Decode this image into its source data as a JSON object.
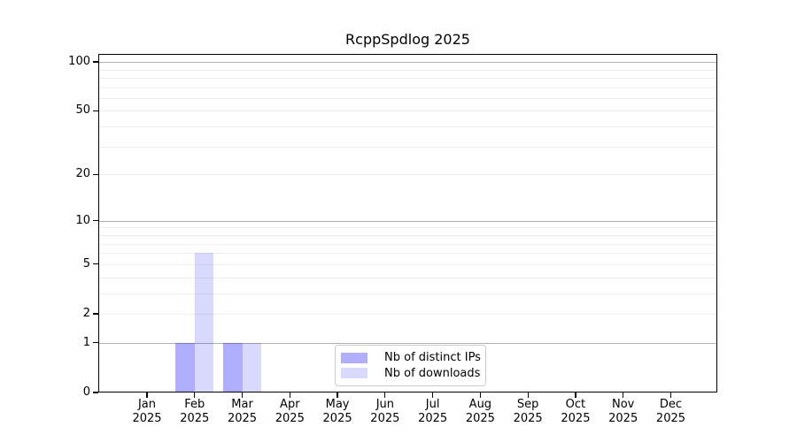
{
  "figure": {
    "background": "#ffffff",
    "axis_color": "#000000"
  },
  "chart_data": {
    "type": "bar",
    "title": "RcppSpdlog 2025",
    "categories": [
      "Jan",
      "Feb",
      "Mar",
      "Apr",
      "May",
      "Jun",
      "Jul",
      "Aug",
      "Sep",
      "Oct",
      "Nov",
      "Dec"
    ],
    "x_tick_year": "2025",
    "series": [
      {
        "name": "Nb of distinct IPs",
        "color": "rgba(10,10,245,0.33)",
        "values": [
          0,
          1,
          1,
          0,
          0,
          0,
          0,
          0,
          0,
          0,
          0,
          0
        ]
      },
      {
        "name": "Nb of downloads",
        "color": "rgba(10,10,245,0.155)",
        "values": [
          0,
          6,
          1,
          0,
          0,
          0,
          0,
          0,
          0,
          0,
          0,
          0
        ]
      }
    ],
    "yscale": "log1p",
    "ylim": [
      0,
      112
    ],
    "y_ticks": [
      0,
      1,
      2,
      5,
      10,
      20,
      50,
      100
    ],
    "y_tick_labels": [
      "0",
      "1",
      "2",
      "5",
      "10",
      "20",
      "50",
      "100"
    ],
    "grid": {
      "major_values": [
        1,
        10,
        100
      ],
      "minor_values": [
        2,
        3,
        4,
        5,
        6,
        7,
        8,
        9,
        20,
        30,
        40,
        50,
        60,
        70,
        80,
        90
      ],
      "major_color": "#b0b0b0",
      "minor_color": "#ededed"
    },
    "legend": {
      "position": "lower center",
      "entries": [
        "Nb of distinct IPs",
        "Nb of downloads"
      ]
    }
  }
}
